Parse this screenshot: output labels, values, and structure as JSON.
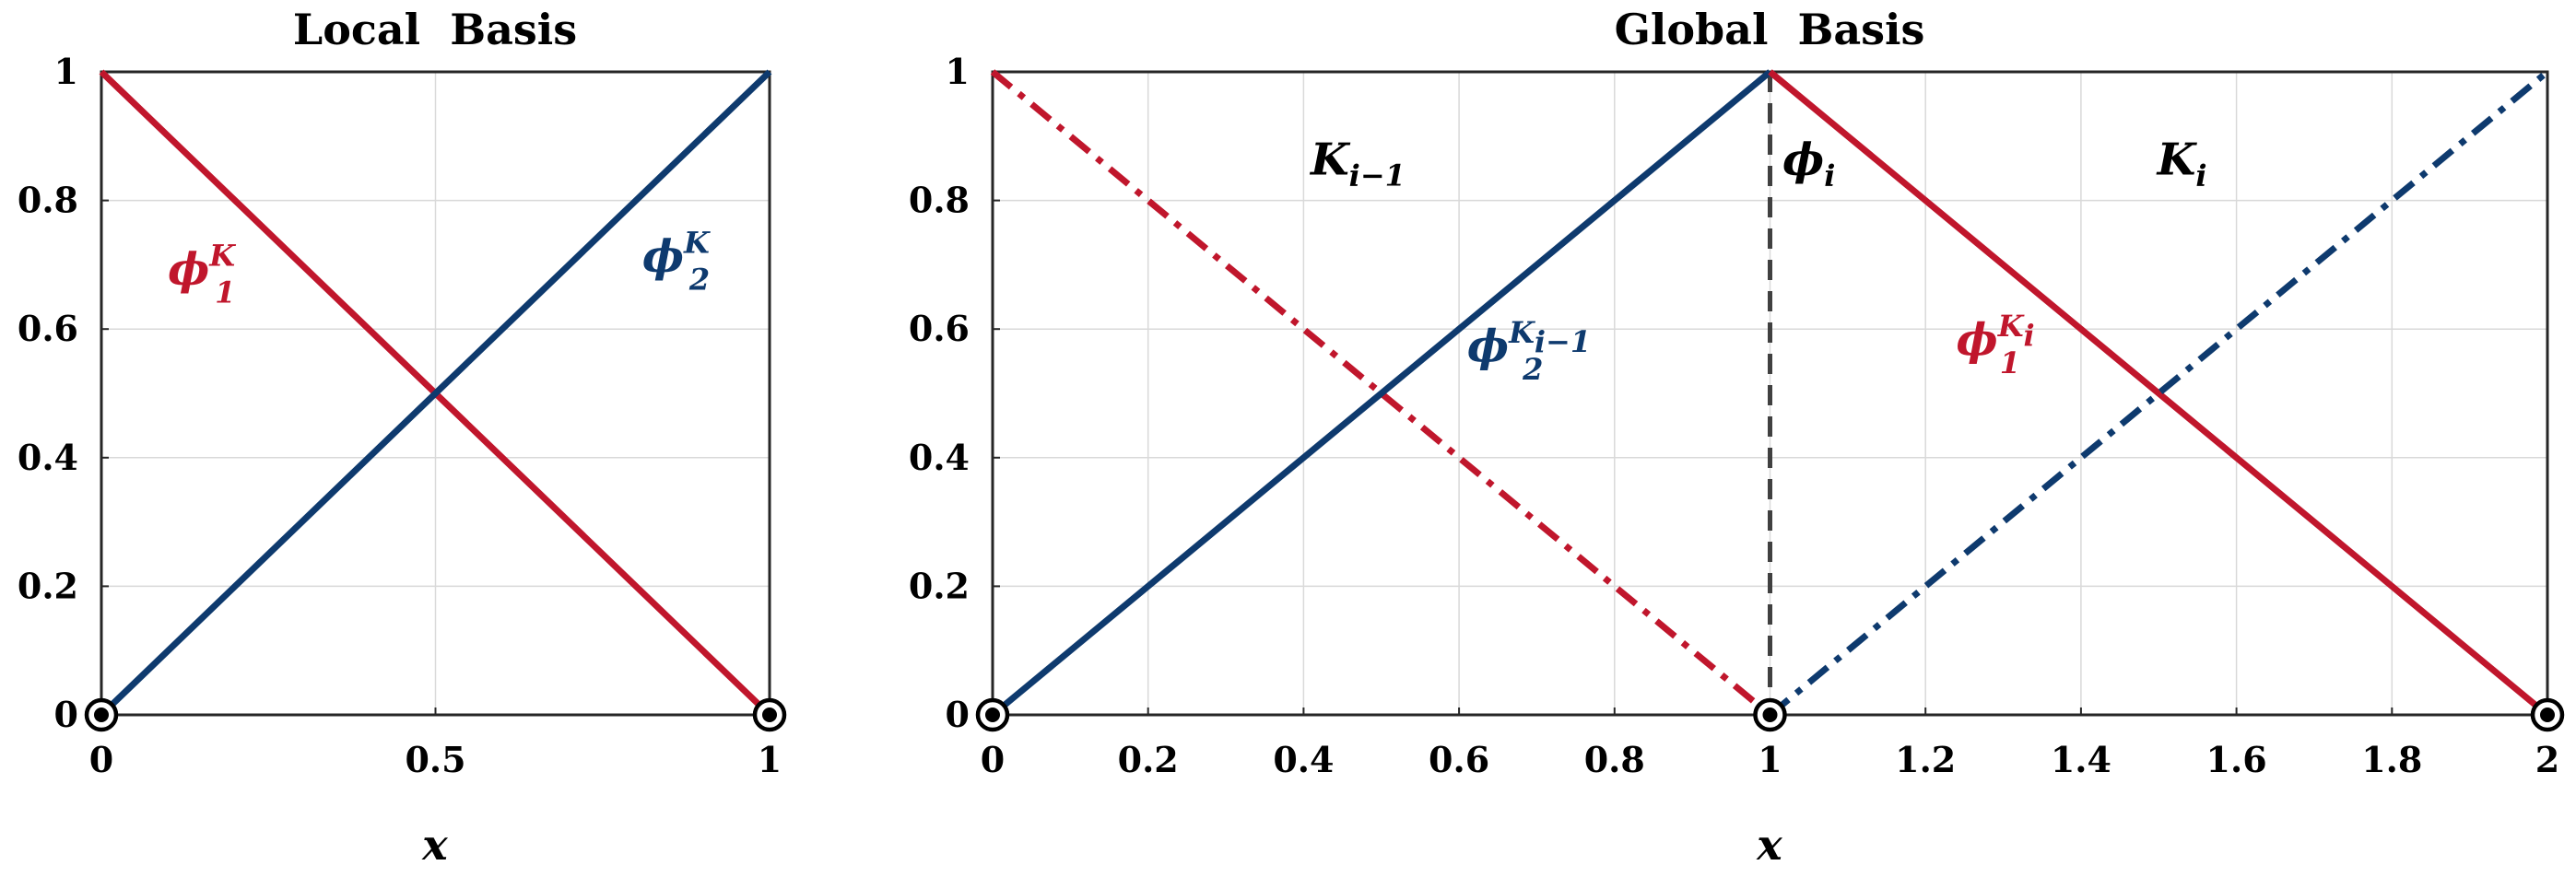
{
  "colors": {
    "red": "#c0162c",
    "blue": "#0e3a6e",
    "black": "#000000",
    "divider": "#404040"
  },
  "chart_data": [
    {
      "type": "line",
      "title": "Local  Basis",
      "xlabel": "x",
      "ylabel": "",
      "xlim": [
        0,
        1
      ],
      "ylim": [
        0,
        1
      ],
      "xticks": [
        0,
        0.5,
        1
      ],
      "xtick_labels": [
        "0",
        "0.5",
        "1"
      ],
      "yticks": [
        0,
        0.2,
        0.4,
        0.6,
        0.8,
        1
      ],
      "ytick_labels": [
        "0",
        "0.2",
        "0.4",
        "0.6",
        "0.8",
        "1"
      ],
      "grid": true,
      "series": [
        {
          "x": [
            0,
            1
          ],
          "y": [
            1,
            0
          ],
          "color": "red",
          "style": "solid"
        },
        {
          "x": [
            0,
            1
          ],
          "y": [
            0,
            1
          ],
          "color": "blue",
          "style": "solid"
        }
      ],
      "nodes": [
        [
          0,
          0
        ],
        [
          1,
          0
        ]
      ],
      "annotations": [
        {
          "base": "ϕ",
          "sub": "1",
          "sup": "K",
          "x": 0.15,
          "y": 0.67,
          "color": "red"
        },
        {
          "base": "ϕ",
          "sub": "2",
          "sup": "K",
          "x": 0.86,
          "y": 0.69,
          "color": "blue"
        }
      ]
    },
    {
      "type": "line",
      "title": "Global  Basis",
      "xlabel": "x",
      "ylabel": "",
      "xlim": [
        0,
        2
      ],
      "ylim": [
        0,
        1
      ],
      "xticks": [
        0,
        0.2,
        0.4,
        0.6,
        0.8,
        1,
        1.2,
        1.4,
        1.6,
        1.8,
        2
      ],
      "xtick_labels": [
        "0",
        "0.2",
        "0.4",
        "0.6",
        "0.8",
        "1",
        "1.2",
        "1.4",
        "1.6",
        "1.8",
        "2"
      ],
      "yticks": [
        0,
        0.2,
        0.4,
        0.6,
        0.8,
        1
      ],
      "ytick_labels": [
        "0",
        "0.2",
        "0.4",
        "0.6",
        "0.8",
        "1"
      ],
      "grid": true,
      "series": [
        {
          "x": [
            0,
            1
          ],
          "y": [
            1,
            0
          ],
          "color": "red",
          "style": "dashdot"
        },
        {
          "x": [
            0,
            1
          ],
          "y": [
            0,
            1
          ],
          "color": "blue",
          "style": "solid"
        },
        {
          "x": [
            1,
            2
          ],
          "y": [
            1,
            0
          ],
          "color": "red",
          "style": "solid"
        },
        {
          "x": [
            1,
            2
          ],
          "y": [
            0,
            1
          ],
          "color": "blue",
          "style": "dashdot"
        }
      ],
      "divider": {
        "x": 1
      },
      "nodes": [
        [
          0,
          0
        ],
        [
          1,
          0
        ],
        [
          2,
          0
        ]
      ],
      "annotations": [
        {
          "base": "K",
          "sub": "i−1",
          "sup": "",
          "x": 0.47,
          "y": 0.84,
          "color": "black"
        },
        {
          "base": "ϕ",
          "sub": "i",
          "sup": "",
          "x": 1.05,
          "y": 0.84,
          "color": "black"
        },
        {
          "base": "K",
          "sub": "i",
          "sup": "",
          "x": 1.53,
          "y": 0.84,
          "color": "black"
        },
        {
          "base": "ϕ",
          "sub": "2",
          "sup": "K",
          "sup_sub": "i−1",
          "x": 0.69,
          "y": 0.55,
          "color": "blue"
        },
        {
          "base": "ϕ",
          "sub": "1",
          "sup": "K",
          "sup_sub": "i",
          "x": 1.29,
          "y": 0.56,
          "color": "red"
        }
      ]
    }
  ]
}
